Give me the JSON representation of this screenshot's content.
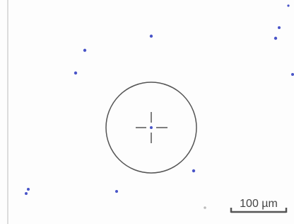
{
  "scale_bar": {
    "label": "100 µm"
  }
}
